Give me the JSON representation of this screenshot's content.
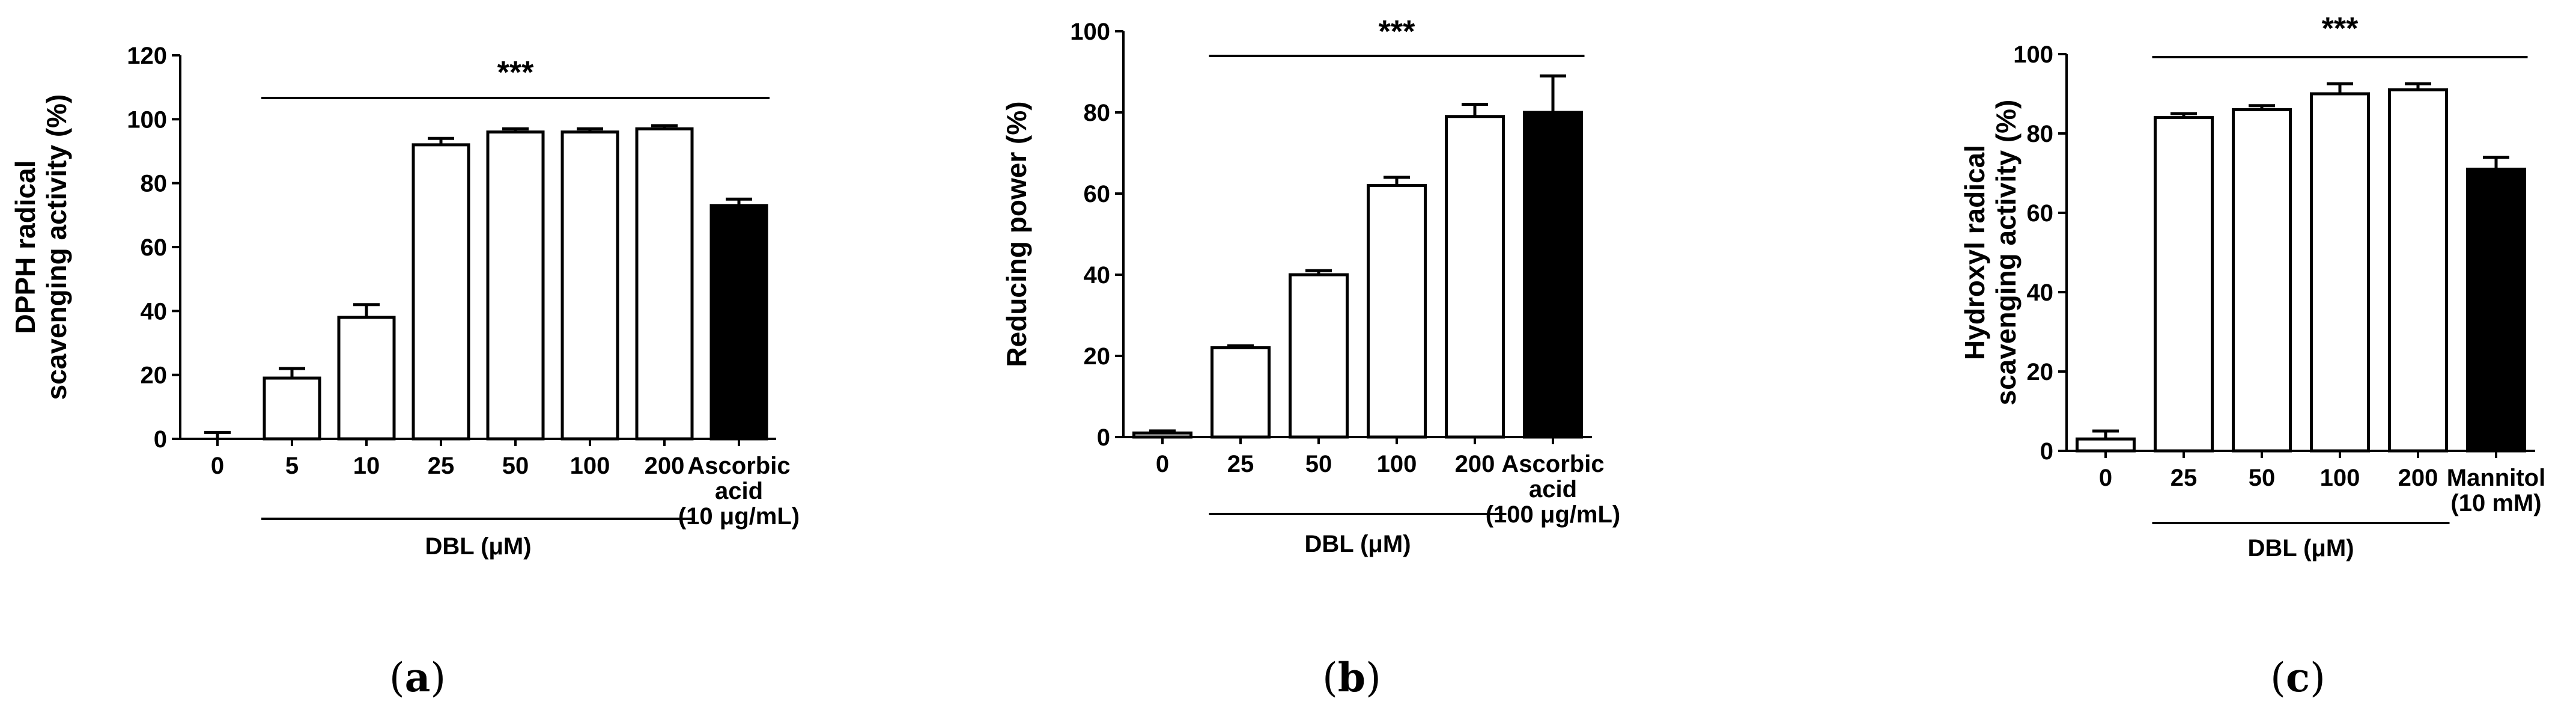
{
  "chart_data": [
    {
      "type": "bar",
      "panel_label": "a",
      "ylabel": "DPPH radical scavenging activity (%)",
      "ylabel_lines": [
        "DPPH radical",
        "scavenging activity (%)"
      ],
      "ylim": [
        0,
        120
      ],
      "yticks": [
        0,
        20,
        40,
        60,
        80,
        100,
        120
      ],
      "categories": [
        "0",
        "5",
        "10",
        "25",
        "50",
        "100",
        "200",
        "Ascorbic acid (10 μg/mL)"
      ],
      "category_lines": [
        [
          "0"
        ],
        [
          "5"
        ],
        [
          "10"
        ],
        [
          "25"
        ],
        [
          "50"
        ],
        [
          "100"
        ],
        [
          "200"
        ],
        [
          "Ascorbic",
          "acid",
          "(10 μg/mL)"
        ]
      ],
      "values": [
        0,
        19,
        38,
        92,
        96,
        96,
        97,
        73
      ],
      "errors": [
        2,
        3,
        4,
        2,
        1,
        1,
        1,
        2
      ],
      "bar_colors": [
        "#ffffff",
        "#ffffff",
        "#ffffff",
        "#ffffff",
        "#ffffff",
        "#ffffff",
        "#ffffff",
        "#000000"
      ],
      "group_label": "DBL (μM)",
      "group_from": 1,
      "group_to": 6,
      "significance": "***",
      "sig_from": 1,
      "sig_to": 7
    },
    {
      "type": "bar",
      "panel_label": "b",
      "ylabel": "Reducing power (%)",
      "ylabel_lines": [
        "Reducing power (%)"
      ],
      "ylim": [
        0,
        100
      ],
      "yticks": [
        0,
        20,
        40,
        60,
        80,
        100
      ],
      "categories": [
        "0",
        "25",
        "50",
        "100",
        "200",
        "Ascorbic acid (100 μg/mL)"
      ],
      "category_lines": [
        [
          "0"
        ],
        [
          "25"
        ],
        [
          "50"
        ],
        [
          "100"
        ],
        [
          "200"
        ],
        [
          "Ascorbic",
          "acid",
          "(100 μg/mL)"
        ]
      ],
      "values": [
        1,
        22,
        40,
        62,
        79,
        80
      ],
      "errors": [
        0.5,
        0.5,
        1,
        2,
        3,
        9
      ],
      "bar_colors": [
        "#ffffff",
        "#ffffff",
        "#ffffff",
        "#ffffff",
        "#ffffff",
        "#000000"
      ],
      "group_label": "DBL (μM)",
      "group_from": 1,
      "group_to": 4,
      "significance": "***",
      "sig_from": 1,
      "sig_to": 5
    },
    {
      "type": "bar",
      "panel_label": "c",
      "ylabel": "Hydroxyl radical scavenging activity (%)",
      "ylabel_lines": [
        "Hydroxyl radical",
        "scavenging activity (%)"
      ],
      "ylim": [
        0,
        100
      ],
      "yticks": [
        0,
        20,
        40,
        60,
        80,
        100
      ],
      "categories": [
        "0",
        "25",
        "50",
        "100",
        "200",
        "Mannitol (10 mM)"
      ],
      "category_lines": [
        [
          "0"
        ],
        [
          "25"
        ],
        [
          "50"
        ],
        [
          "100"
        ],
        [
          "200"
        ],
        [
          "Mannitol",
          "(10 mM)"
        ]
      ],
      "values": [
        3,
        84,
        86,
        90,
        91,
        71
      ],
      "errors": [
        2,
        1,
        1,
        2.5,
        1.5,
        3
      ],
      "bar_colors": [
        "#ffffff",
        "#ffffff",
        "#ffffff",
        "#ffffff",
        "#ffffff",
        "#000000"
      ],
      "group_label": "DBL (μM)",
      "group_from": 1,
      "group_to": 4,
      "significance": "***",
      "sig_from": 1,
      "sig_to": 5
    }
  ]
}
